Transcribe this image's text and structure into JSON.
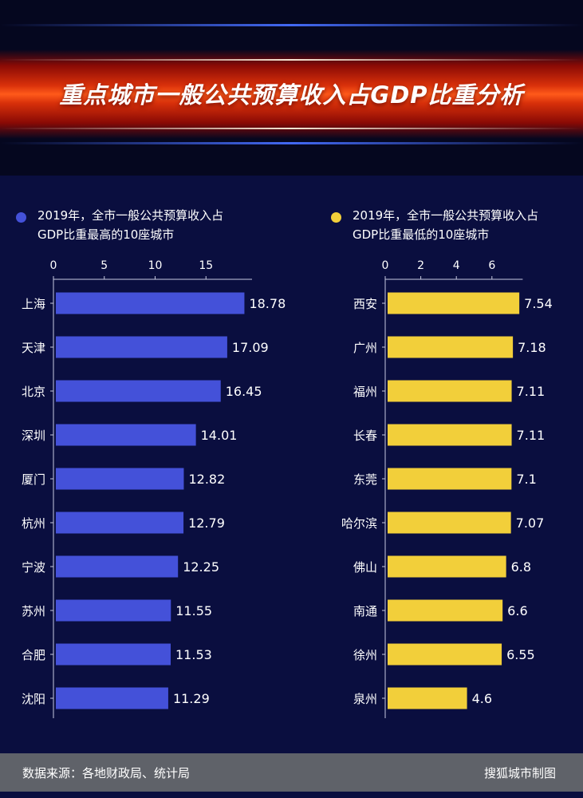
{
  "header": {
    "title": "重点城市一般公共预算收入占GDP比重分析"
  },
  "colors": {
    "background": "#0a0e3f",
    "highest_bar": "#4451d9",
    "lowest_bar": "#f2cf3a",
    "axis": "#c8cbe0",
    "footer": "#5f6269"
  },
  "legend_left": {
    "text_line1": "2019年，全市一般公共预算收入占",
    "text_line2": "GDP比重最高的10座城市"
  },
  "legend_right": {
    "text_line1": "2019年，全市一般公共预算收入占",
    "text_line2": "GDP比重最低的10座城市"
  },
  "chart_data": [
    {
      "type": "bar",
      "orientation": "horizontal",
      "title": "2019年，全市一般公共预算收入占GDP比重最高的10座城市",
      "categories": [
        "上海",
        "天津",
        "北京",
        "深圳",
        "厦门",
        "杭州",
        "宁波",
        "苏州",
        "合肥",
        "沈阳"
      ],
      "values": [
        18.78,
        17.09,
        16.45,
        14.01,
        12.82,
        12.79,
        12.25,
        11.55,
        11.53,
        11.29
      ],
      "value_labels": [
        "18.78",
        "17.09",
        "16.45",
        "14.01",
        "12.82",
        "12.79",
        "12.25",
        "11.55",
        "11.53",
        "11.29"
      ],
      "xticks": [
        0,
        5,
        10,
        15
      ],
      "xlim": [
        0,
        20
      ],
      "color": "#4451d9",
      "axis_position": "top",
      "grid": false
    },
    {
      "type": "bar",
      "orientation": "horizontal",
      "title": "2019年，全市一般公共预算收入占GDP比重最低的10座城市",
      "categories": [
        "西安",
        "广州",
        "福州",
        "长春",
        "东莞",
        "哈尔滨",
        "佛山",
        "南通",
        "徐州",
        "泉州"
      ],
      "values": [
        7.54,
        7.18,
        7.11,
        7.11,
        7.1,
        7.07,
        6.8,
        6.6,
        6.55,
        4.6
      ],
      "value_labels": [
        "7.54",
        "7.18",
        "7.11",
        "7.11",
        "7.1",
        "7.07",
        "6.8",
        "6.6",
        "6.55",
        "4.6"
      ],
      "xticks": [
        0,
        2,
        4,
        6
      ],
      "xlim": [
        0,
        8
      ],
      "color": "#f2cf3a",
      "axis_position": "top",
      "grid": false
    }
  ],
  "footer": {
    "source": "数据来源：各地财政局、统计局",
    "credit": "搜狐城市制图"
  }
}
